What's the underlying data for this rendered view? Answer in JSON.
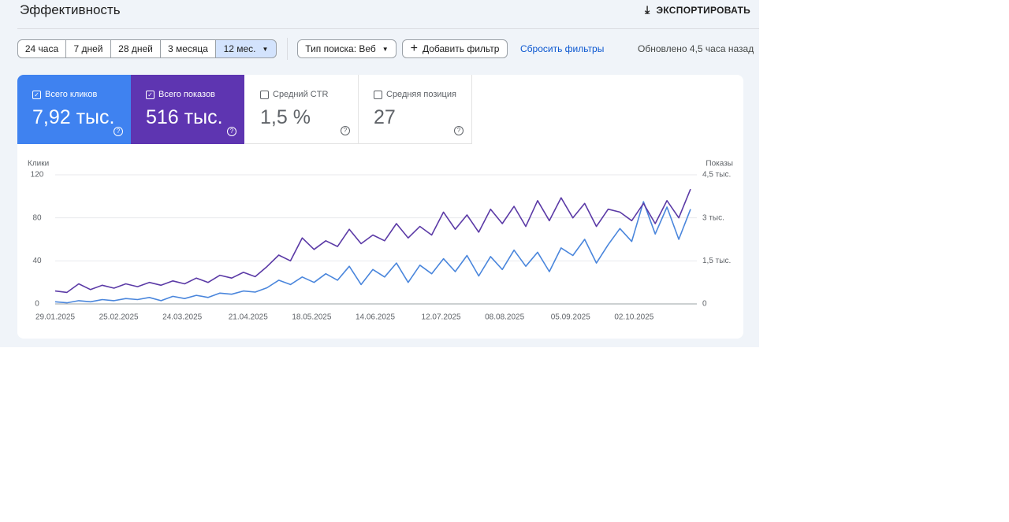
{
  "header": {
    "title": "Эффективность",
    "export": "ЭКСПОРТИРОВАТЬ"
  },
  "filters": {
    "ranges": [
      "24 часа",
      "7 дней",
      "28 дней",
      "3 месяца",
      "12 мес."
    ],
    "search_type": "Тип поиска: Веб",
    "add_filter": "Добавить фильтр",
    "reset": "Сбросить фильтры",
    "updated": "Обновлено 4,5 часа назад"
  },
  "metrics": [
    {
      "label": "Всего кликов",
      "value": "7,92 тыс."
    },
    {
      "label": "Всего показов",
      "value": "516 тыс."
    },
    {
      "label": "Средний CTR",
      "value": "1,5 %"
    },
    {
      "label": "Средняя позиция",
      "value": "27"
    }
  ],
  "chart_data": {
    "type": "line",
    "ylabel": "Клики",
    "y2label": "Показы",
    "x": [
      "29.01.2025",
      "03.02.2025",
      "08.02.2025",
      "13.02.2025",
      "18.02.2025",
      "23.02.2025",
      "28.02.2025",
      "05.03.2025",
      "10.03.2025",
      "15.03.2025",
      "20.03.2025",
      "25.03.2025",
      "30.03.2025",
      "04.04.2025",
      "09.04.2025",
      "14.04.2025",
      "19.04.2025",
      "24.04.2025",
      "29.04.2025",
      "04.05.2025",
      "09.05.2025",
      "14.05.2025",
      "19.05.2025",
      "24.05.2025",
      "29.05.2025",
      "03.06.2025",
      "08.06.2025",
      "13.06.2025",
      "18.06.2025",
      "23.06.2025",
      "28.06.2025",
      "03.07.2025",
      "08.07.2025",
      "13.07.2025",
      "18.07.2025",
      "23.07.2025",
      "28.07.2025",
      "02.08.2025",
      "07.08.2025",
      "12.08.2025",
      "17.08.2025",
      "22.08.2025",
      "27.08.2025",
      "01.09.2025",
      "06.09.2025",
      "11.09.2025",
      "16.09.2025",
      "21.09.2025",
      "26.09.2025",
      "01.10.2025",
      "06.10.2025",
      "11.10.2025",
      "16.10.2025",
      "21.10.2025",
      "26.10.2025"
    ],
    "xlim": [
      "29.01.2025",
      "26.10.2025"
    ],
    "xticks": [
      "29.01.2025",
      "25.02.2025",
      "24.03.2025",
      "21.04.2025",
      "18.05.2025",
      "14.06.2025",
      "12.07.2025",
      "08.08.2025",
      "05.09.2025",
      "02.10.2025"
    ],
    "ylim": [
      0,
      120
    ],
    "yticks": [
      0,
      40,
      80,
      120
    ],
    "y2lim": [
      0,
      4500
    ],
    "y2ticks": [
      0,
      {
        "value": 1500,
        "label": "1,5 тыс."
      },
      {
        "value": 3000,
        "label": "3 тыс."
      },
      {
        "value": 4500,
        "label": "4,5 тыс."
      }
    ],
    "grid": true,
    "series": [
      {
        "name": "Клики",
        "color": "#4a86dc",
        "values": [
          2,
          1,
          3,
          2,
          4,
          3,
          5,
          4,
          6,
          3,
          7,
          5,
          8,
          6,
          10,
          9,
          12,
          11,
          15,
          22,
          18,
          25,
          20,
          28,
          22,
          35,
          18,
          32,
          25,
          38,
          20,
          36,
          28,
          42,
          30,
          45,
          26,
          44,
          32,
          50,
          35,
          48,
          30,
          52,
          45,
          60,
          38,
          55,
          70,
          58,
          95,
          65,
          90,
          60,
          88
        ]
      },
      {
        "name": "Показы",
        "color": "#5b3aa6",
        "axis": "y2",
        "values": [
          450,
          400,
          700,
          500,
          650,
          550,
          700,
          600,
          750,
          650,
          800,
          700,
          900,
          750,
          1000,
          900,
          1100,
          950,
          1300,
          1700,
          1500,
          2300,
          1900,
          2200,
          2000,
          2600,
          2100,
          2400,
          2200,
          2800,
          2300,
          2700,
          2400,
          3200,
          2600,
          3100,
          2500,
          3300,
          2800,
          3400,
          2700,
          3600,
          2900,
          3700,
          3000,
          3500,
          2700,
          3300,
          3200,
          2900,
          3500,
          2800,
          3600,
          3000,
          4000
        ]
      }
    ]
  }
}
